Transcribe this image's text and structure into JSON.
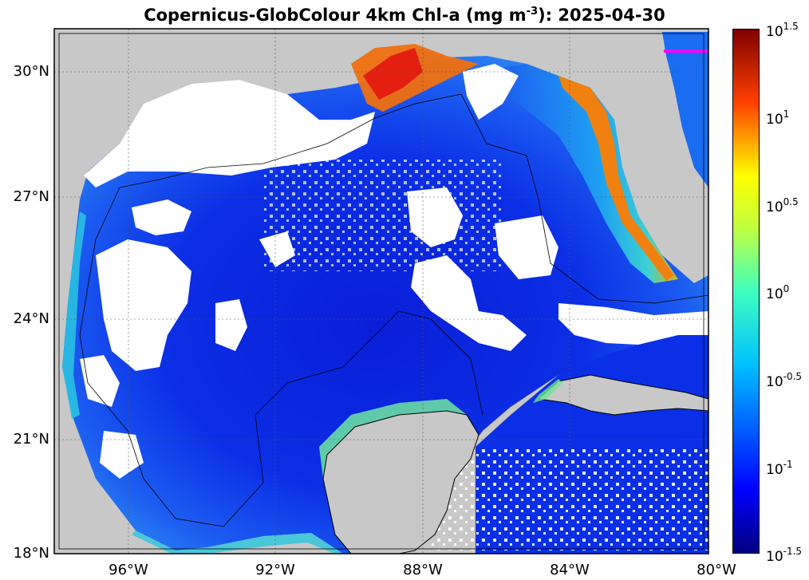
{
  "title": {
    "prefix": "Copernicus-GlobColour 4km Chl-a (mg m",
    "exponent": "-3",
    "suffix": "): 2025-04-30"
  },
  "map": {
    "lat_labels": [
      "30°N",
      "27°N",
      "24°N",
      "21°N",
      "18°N"
    ],
    "lon_labels": [
      "96°W",
      "92°W",
      "88°W",
      "84°W",
      "80°W"
    ],
    "colors": {
      "land": "#c8c8c8",
      "cloud": "#ffffff",
      "deep_water": "#0b2fe0",
      "coastal_high": "#e41f12",
      "marker": "#ff00ff"
    }
  },
  "colorbar": {
    "labels": [
      {
        "base": "10",
        "exp": "1.5"
      },
      {
        "base": "10",
        "exp": "1"
      },
      {
        "base": "10",
        "exp": "0.5"
      },
      {
        "base": "10",
        "exp": "0"
      },
      {
        "base": "10",
        "exp": "-0.5"
      },
      {
        "base": "10",
        "exp": "-1"
      },
      {
        "base": "10",
        "exp": "-1.5"
      }
    ],
    "scale": "log",
    "range": [
      -1.5,
      1.5
    ]
  }
}
